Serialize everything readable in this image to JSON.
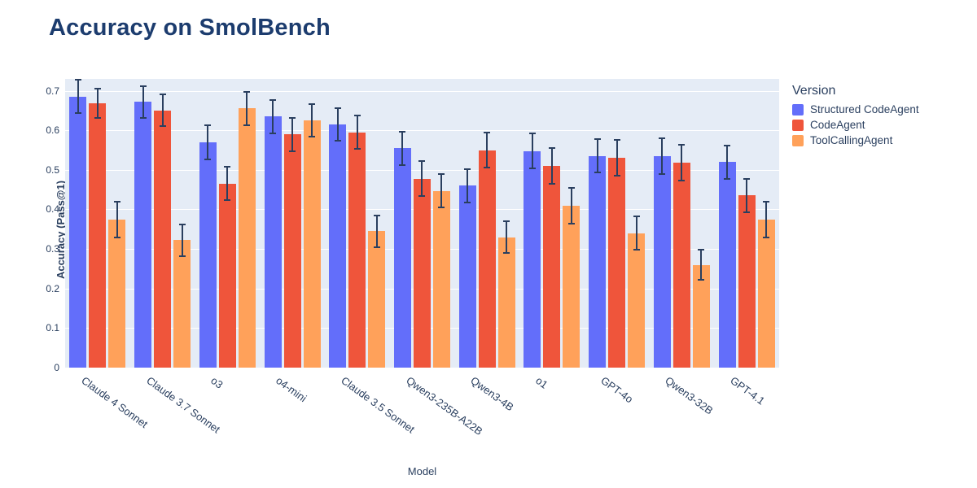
{
  "accent_colors": {
    "plot_background": "#e5ecf6",
    "grid": "#ffffff",
    "error_bar": "#2a3f5f",
    "title_text": "#1c3c6e",
    "axis_text": "#2a3f5f"
  },
  "chart_data": {
    "type": "bar",
    "title": "Accuracy on SmolBench",
    "xlabel": "Model",
    "ylabel": "Accuracy (Pass@1)",
    "legend_title": "Version",
    "ylim": [
      0,
      0.73
    ],
    "yticks": [
      0,
      0.1,
      0.2,
      0.3,
      0.4,
      0.5,
      0.6,
      0.7
    ],
    "ytick_labels": [
      "0",
      "0.1",
      "0.2",
      "0.3",
      "0.4",
      "0.5",
      "0.6",
      "0.7"
    ],
    "grid": true,
    "legend_position": "right",
    "categories": [
      "Claude 4 Sonnet",
      "Claude 3.7 Sonnet",
      "o3",
      "o4-mini",
      "Claude 3.5 Sonnet",
      "Qwen3-235B-A22B",
      "Qwen3-4B",
      "o1",
      "GPT-4o",
      "Qwen3-32B",
      "GPT-4.1"
    ],
    "series": [
      {
        "name": "Structured CodeAgent",
        "color": "#636efa",
        "values": [
          0.685,
          0.672,
          0.57,
          0.635,
          0.615,
          0.555,
          0.46,
          0.548,
          0.535,
          0.535,
          0.52
        ],
        "errors": [
          0.042,
          0.04,
          0.043,
          0.042,
          0.042,
          0.042,
          0.042,
          0.045,
          0.042,
          0.045,
          0.042
        ]
      },
      {
        "name": "CodeAgent",
        "color": "#ef553b",
        "values": [
          0.668,
          0.65,
          0.465,
          0.59,
          0.595,
          0.478,
          0.55,
          0.51,
          0.53,
          0.518,
          0.435
        ],
        "errors": [
          0.037,
          0.04,
          0.042,
          0.042,
          0.042,
          0.045,
          0.045,
          0.045,
          0.045,
          0.045,
          0.042
        ]
      },
      {
        "name": "ToolCallingAgent",
        "color": "#ffa15a",
        "values": [
          0.375,
          0.322,
          0.655,
          0.625,
          0.345,
          0.447,
          0.33,
          0.41,
          0.34,
          0.26,
          0.375
        ],
        "errors": [
          0.045,
          0.04,
          0.042,
          0.042,
          0.04,
          0.042,
          0.04,
          0.045,
          0.042,
          0.038,
          0.045
        ]
      }
    ]
  }
}
